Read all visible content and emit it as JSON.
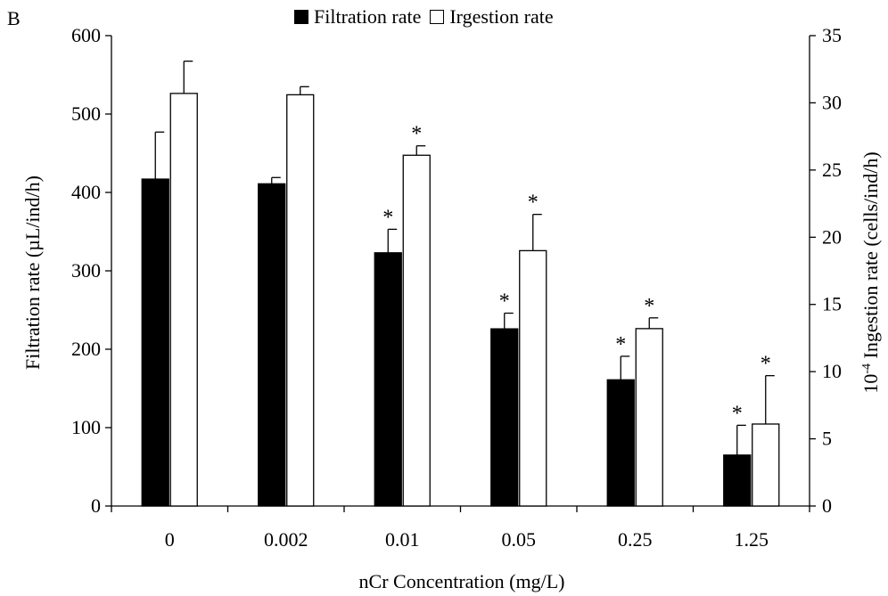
{
  "chart_data": {
    "type": "bar",
    "panel_label": "B",
    "categories": [
      "0",
      "0.002",
      "0.01",
      "0.05",
      "0.25",
      "1.25"
    ],
    "xlabel": "nCr Concentration (mg/L)",
    "ylabel_left": "Filtration rate (µL/ind/h)",
    "ylabel_right_prefix": "10",
    "ylabel_right_exp": "-4",
    "ylabel_right_rest": " Ingestion rate (cells/ind/h)",
    "ylim_left": [
      0,
      600
    ],
    "ylim_right": [
      0,
      35
    ],
    "yticks_left": [
      "0",
      "100",
      "200",
      "300",
      "400",
      "500",
      "600"
    ],
    "yticks_right": [
      "0",
      "5",
      "10",
      "15",
      "20",
      "25",
      "30",
      "35"
    ],
    "grid": false,
    "legend_position": "top-center",
    "series": [
      {
        "name": "Filtration rate",
        "axis": "left",
        "color": "#000000",
        "values": [
          417,
          411,
          323,
          226,
          161,
          65
        ],
        "error": [
          60,
          8,
          30,
          20,
          30,
          38
        ],
        "significance": [
          "",
          "",
          "*",
          "*",
          "*",
          "*"
        ]
      },
      {
        "name": "Irgestion rate",
        "axis": "right",
        "color": "#ffffff",
        "values": [
          30.7,
          30.6,
          26.1,
          19.0,
          13.2,
          6.1
        ],
        "error": [
          2.4,
          0.6,
          0.7,
          2.7,
          0.8,
          3.6
        ],
        "significance": [
          "",
          "",
          "*",
          "*",
          "*",
          "*"
        ]
      }
    ]
  }
}
